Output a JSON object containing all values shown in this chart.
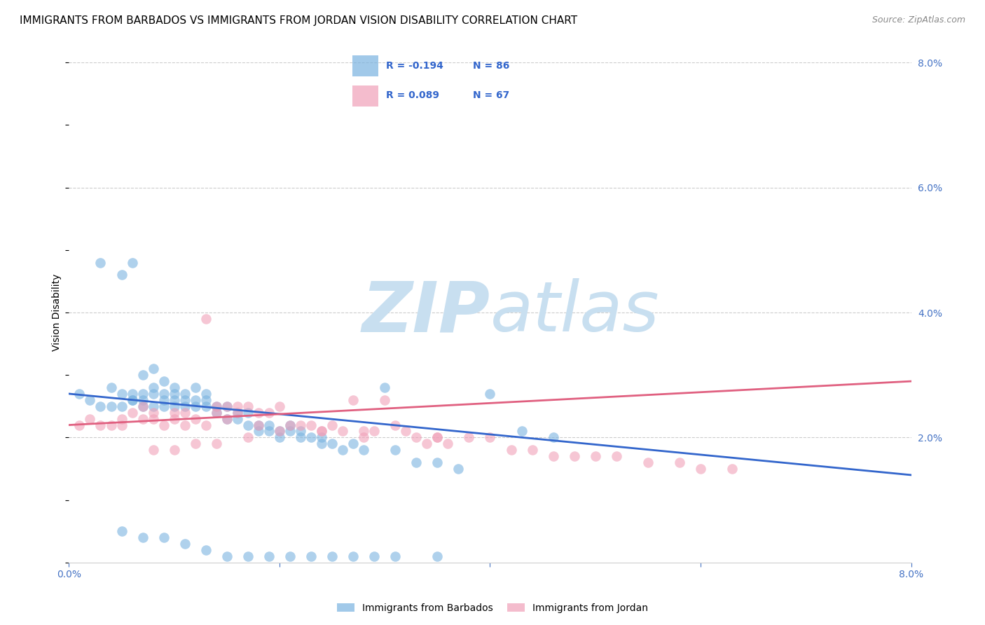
{
  "title": "IMMIGRANTS FROM BARBADOS VS IMMIGRANTS FROM JORDAN VISION DISABILITY CORRELATION CHART",
  "source": "Source: ZipAtlas.com",
  "ylabel": "Vision Disability",
  "xlim": [
    0.0,
    0.08
  ],
  "ylim": [
    0.0,
    0.08
  ],
  "grid_color": "#cccccc",
  "background_color": "#ffffff",
  "watermark_zip": "ZIP",
  "watermark_atlas": "atlas",
  "watermark_color_zip": "#c8dff0",
  "watermark_color_atlas": "#c8dff0",
  "series1_label": "Immigrants from Barbados",
  "series1_color": "#7ab3e0",
  "series1_R": "-0.194",
  "series1_N": "86",
  "series2_label": "Immigrants from Jordan",
  "series2_color": "#f0a0b8",
  "series2_R": "0.089",
  "series2_N": "67",
  "tick_color": "#4472c4",
  "title_fontsize": 11,
  "source_fontsize": 9,
  "label_fontsize": 10,
  "tick_fontsize": 10,
  "trend1_x0": 0.0,
  "trend1_y0": 0.027,
  "trend1_x1": 0.08,
  "trend1_y1": 0.014,
  "trend2_x0": 0.0,
  "trend2_y0": 0.022,
  "trend2_x1": 0.08,
  "trend2_y1": 0.029,
  "s1_x": [
    0.001,
    0.002,
    0.003,
    0.003,
    0.004,
    0.004,
    0.005,
    0.005,
    0.005,
    0.006,
    0.006,
    0.006,
    0.006,
    0.007,
    0.007,
    0.007,
    0.007,
    0.008,
    0.008,
    0.008,
    0.008,
    0.009,
    0.009,
    0.009,
    0.009,
    0.01,
    0.01,
    0.01,
    0.01,
    0.011,
    0.011,
    0.011,
    0.012,
    0.012,
    0.012,
    0.013,
    0.013,
    0.013,
    0.014,
    0.014,
    0.015,
    0.015,
    0.016,
    0.016,
    0.017,
    0.017,
    0.018,
    0.018,
    0.019,
    0.019,
    0.02,
    0.02,
    0.021,
    0.021,
    0.022,
    0.022,
    0.023,
    0.024,
    0.024,
    0.025,
    0.026,
    0.027,
    0.028,
    0.03,
    0.031,
    0.033,
    0.035,
    0.037,
    0.04,
    0.043,
    0.046,
    0.005,
    0.007,
    0.009,
    0.011,
    0.013,
    0.015,
    0.017,
    0.019,
    0.021,
    0.023,
    0.025,
    0.027,
    0.029,
    0.031,
    0.035
  ],
  "s1_y": [
    0.027,
    0.026,
    0.048,
    0.025,
    0.028,
    0.025,
    0.046,
    0.027,
    0.025,
    0.026,
    0.048,
    0.027,
    0.026,
    0.03,
    0.027,
    0.026,
    0.025,
    0.031,
    0.028,
    0.027,
    0.025,
    0.029,
    0.027,
    0.026,
    0.025,
    0.028,
    0.027,
    0.026,
    0.025,
    0.027,
    0.026,
    0.025,
    0.028,
    0.026,
    0.025,
    0.027,
    0.026,
    0.025,
    0.025,
    0.024,
    0.025,
    0.023,
    0.024,
    0.023,
    0.024,
    0.022,
    0.022,
    0.021,
    0.022,
    0.021,
    0.021,
    0.02,
    0.022,
    0.021,
    0.02,
    0.021,
    0.02,
    0.02,
    0.019,
    0.019,
    0.018,
    0.019,
    0.018,
    0.028,
    0.018,
    0.016,
    0.016,
    0.015,
    0.027,
    0.021,
    0.02,
    0.005,
    0.004,
    0.004,
    0.003,
    0.002,
    0.001,
    0.001,
    0.001,
    0.001,
    0.001,
    0.001,
    0.001,
    0.001,
    0.001,
    0.001
  ],
  "s2_x": [
    0.001,
    0.002,
    0.003,
    0.004,
    0.005,
    0.005,
    0.006,
    0.007,
    0.007,
    0.008,
    0.008,
    0.009,
    0.01,
    0.01,
    0.011,
    0.011,
    0.012,
    0.013,
    0.013,
    0.014,
    0.014,
    0.015,
    0.015,
    0.016,
    0.016,
    0.017,
    0.018,
    0.018,
    0.019,
    0.02,
    0.021,
    0.022,
    0.023,
    0.024,
    0.025,
    0.026,
    0.027,
    0.028,
    0.029,
    0.03,
    0.031,
    0.032,
    0.033,
    0.034,
    0.035,
    0.036,
    0.038,
    0.04,
    0.042,
    0.044,
    0.046,
    0.048,
    0.05,
    0.052,
    0.055,
    0.058,
    0.06,
    0.063,
    0.035,
    0.028,
    0.024,
    0.02,
    0.017,
    0.014,
    0.012,
    0.01,
    0.008
  ],
  "s2_y": [
    0.022,
    0.023,
    0.022,
    0.022,
    0.023,
    0.022,
    0.024,
    0.025,
    0.023,
    0.024,
    0.023,
    0.022,
    0.024,
    0.023,
    0.022,
    0.024,
    0.023,
    0.022,
    0.039,
    0.025,
    0.024,
    0.025,
    0.023,
    0.025,
    0.024,
    0.025,
    0.024,
    0.022,
    0.024,
    0.025,
    0.022,
    0.022,
    0.022,
    0.021,
    0.022,
    0.021,
    0.026,
    0.021,
    0.021,
    0.026,
    0.022,
    0.021,
    0.02,
    0.019,
    0.02,
    0.019,
    0.02,
    0.02,
    0.018,
    0.018,
    0.017,
    0.017,
    0.017,
    0.017,
    0.016,
    0.016,
    0.015,
    0.015,
    0.02,
    0.02,
    0.021,
    0.021,
    0.02,
    0.019,
    0.019,
    0.018,
    0.018
  ]
}
